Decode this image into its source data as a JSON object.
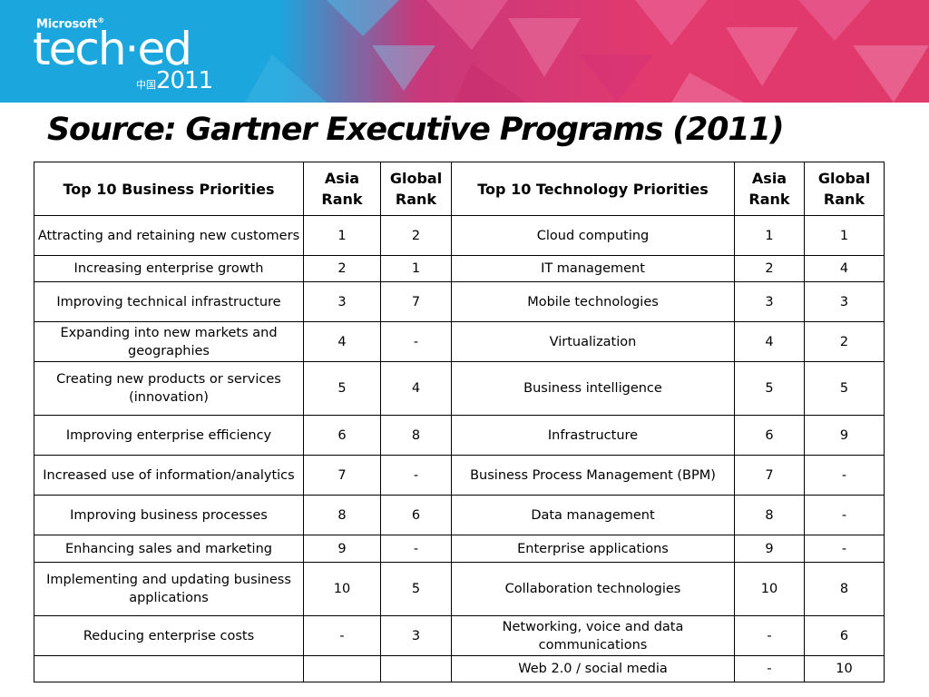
{
  "banner": {
    "brand": "Microsoft",
    "brand_mark": "®",
    "product": "tech·ed",
    "region": "中国",
    "year": "2011"
  },
  "slide": {
    "title": "Source: Gartner Executive Programs (2011)"
  },
  "table": {
    "headers": [
      "Top 10 Business Priorities",
      "Asia Rank",
      "Global Rank",
      "Top 10 Technology Priorities",
      "Asia Rank",
      "Global Rank"
    ],
    "rows": [
      [
        "Attracting and retaining new customers",
        "1",
        "2",
        "Cloud computing",
        "1",
        "1"
      ],
      [
        "Increasing enterprise growth",
        "2",
        "1",
        "IT management",
        "2",
        "4"
      ],
      [
        "Improving technical infrastructure",
        "3",
        "7",
        "Mobile technologies",
        "3",
        "3"
      ],
      [
        "Expanding into new markets and geographies",
        "4",
        "-",
        "Virtualization",
        "4",
        "2"
      ],
      [
        "Creating new products or services (innovation)",
        "5",
        "4",
        "Business intelligence",
        "5",
        "5"
      ],
      [
        "Improving enterprise efficiency",
        "6",
        "8",
        "Infrastructure",
        "6",
        "9"
      ],
      [
        "Increased use of information/analytics",
        "7",
        "-",
        "Business Process Management (BPM)",
        "7",
        "-"
      ],
      [
        "Improving business processes",
        "8",
        "6",
        "Data management",
        "8",
        "-"
      ],
      [
        "Enhancing sales and marketing",
        "9",
        "-",
        "Enterprise applications",
        "9",
        "-"
      ],
      [
        "Implementing and updating business applications",
        "10",
        "5",
        "Collaboration technologies",
        "10",
        "8"
      ],
      [
        "Reducing enterprise costs",
        "-",
        "3",
        "Networking, voice and data communications",
        "-",
        "6"
      ],
      [
        "",
        "",
        "",
        "Web 2.0 / social media",
        "-",
        "10"
      ]
    ]
  }
}
